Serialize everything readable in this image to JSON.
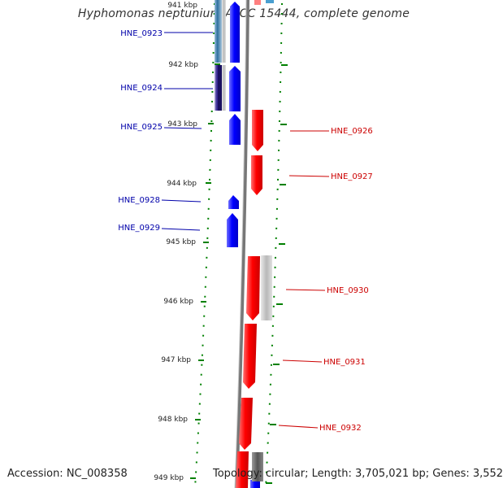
{
  "title": "Hyphomonas neptunium ATCC 15444, complete genome",
  "footer": {
    "accession": "Accession: NC_008358",
    "summary": "Topology: circular; Length: 3,705,021 bp; Genes: 3,552"
  },
  "colors": {
    "forward_gene": "#0000ff",
    "reverse_gene": "#ff0000",
    "forward_label": "#0000aa",
    "reverse_label": "#cc0000",
    "tick": "#008000",
    "backbone": "#808080"
  },
  "kbp_ticks": [
    "941 kbp",
    "942 kbp",
    "943 kbp",
    "944 kbp",
    "945 kbp",
    "946 kbp",
    "947 kbp",
    "948 kbp",
    "949 kbp"
  ],
  "forward_genes": [
    "HNE_0923",
    "HNE_0924",
    "HNE_0925",
    "HNE_0928",
    "HNE_0929"
  ],
  "reverse_genes": [
    "HNE_0926",
    "HNE_0927",
    "HNE_0930",
    "HNE_0931",
    "HNE_0932"
  ]
}
